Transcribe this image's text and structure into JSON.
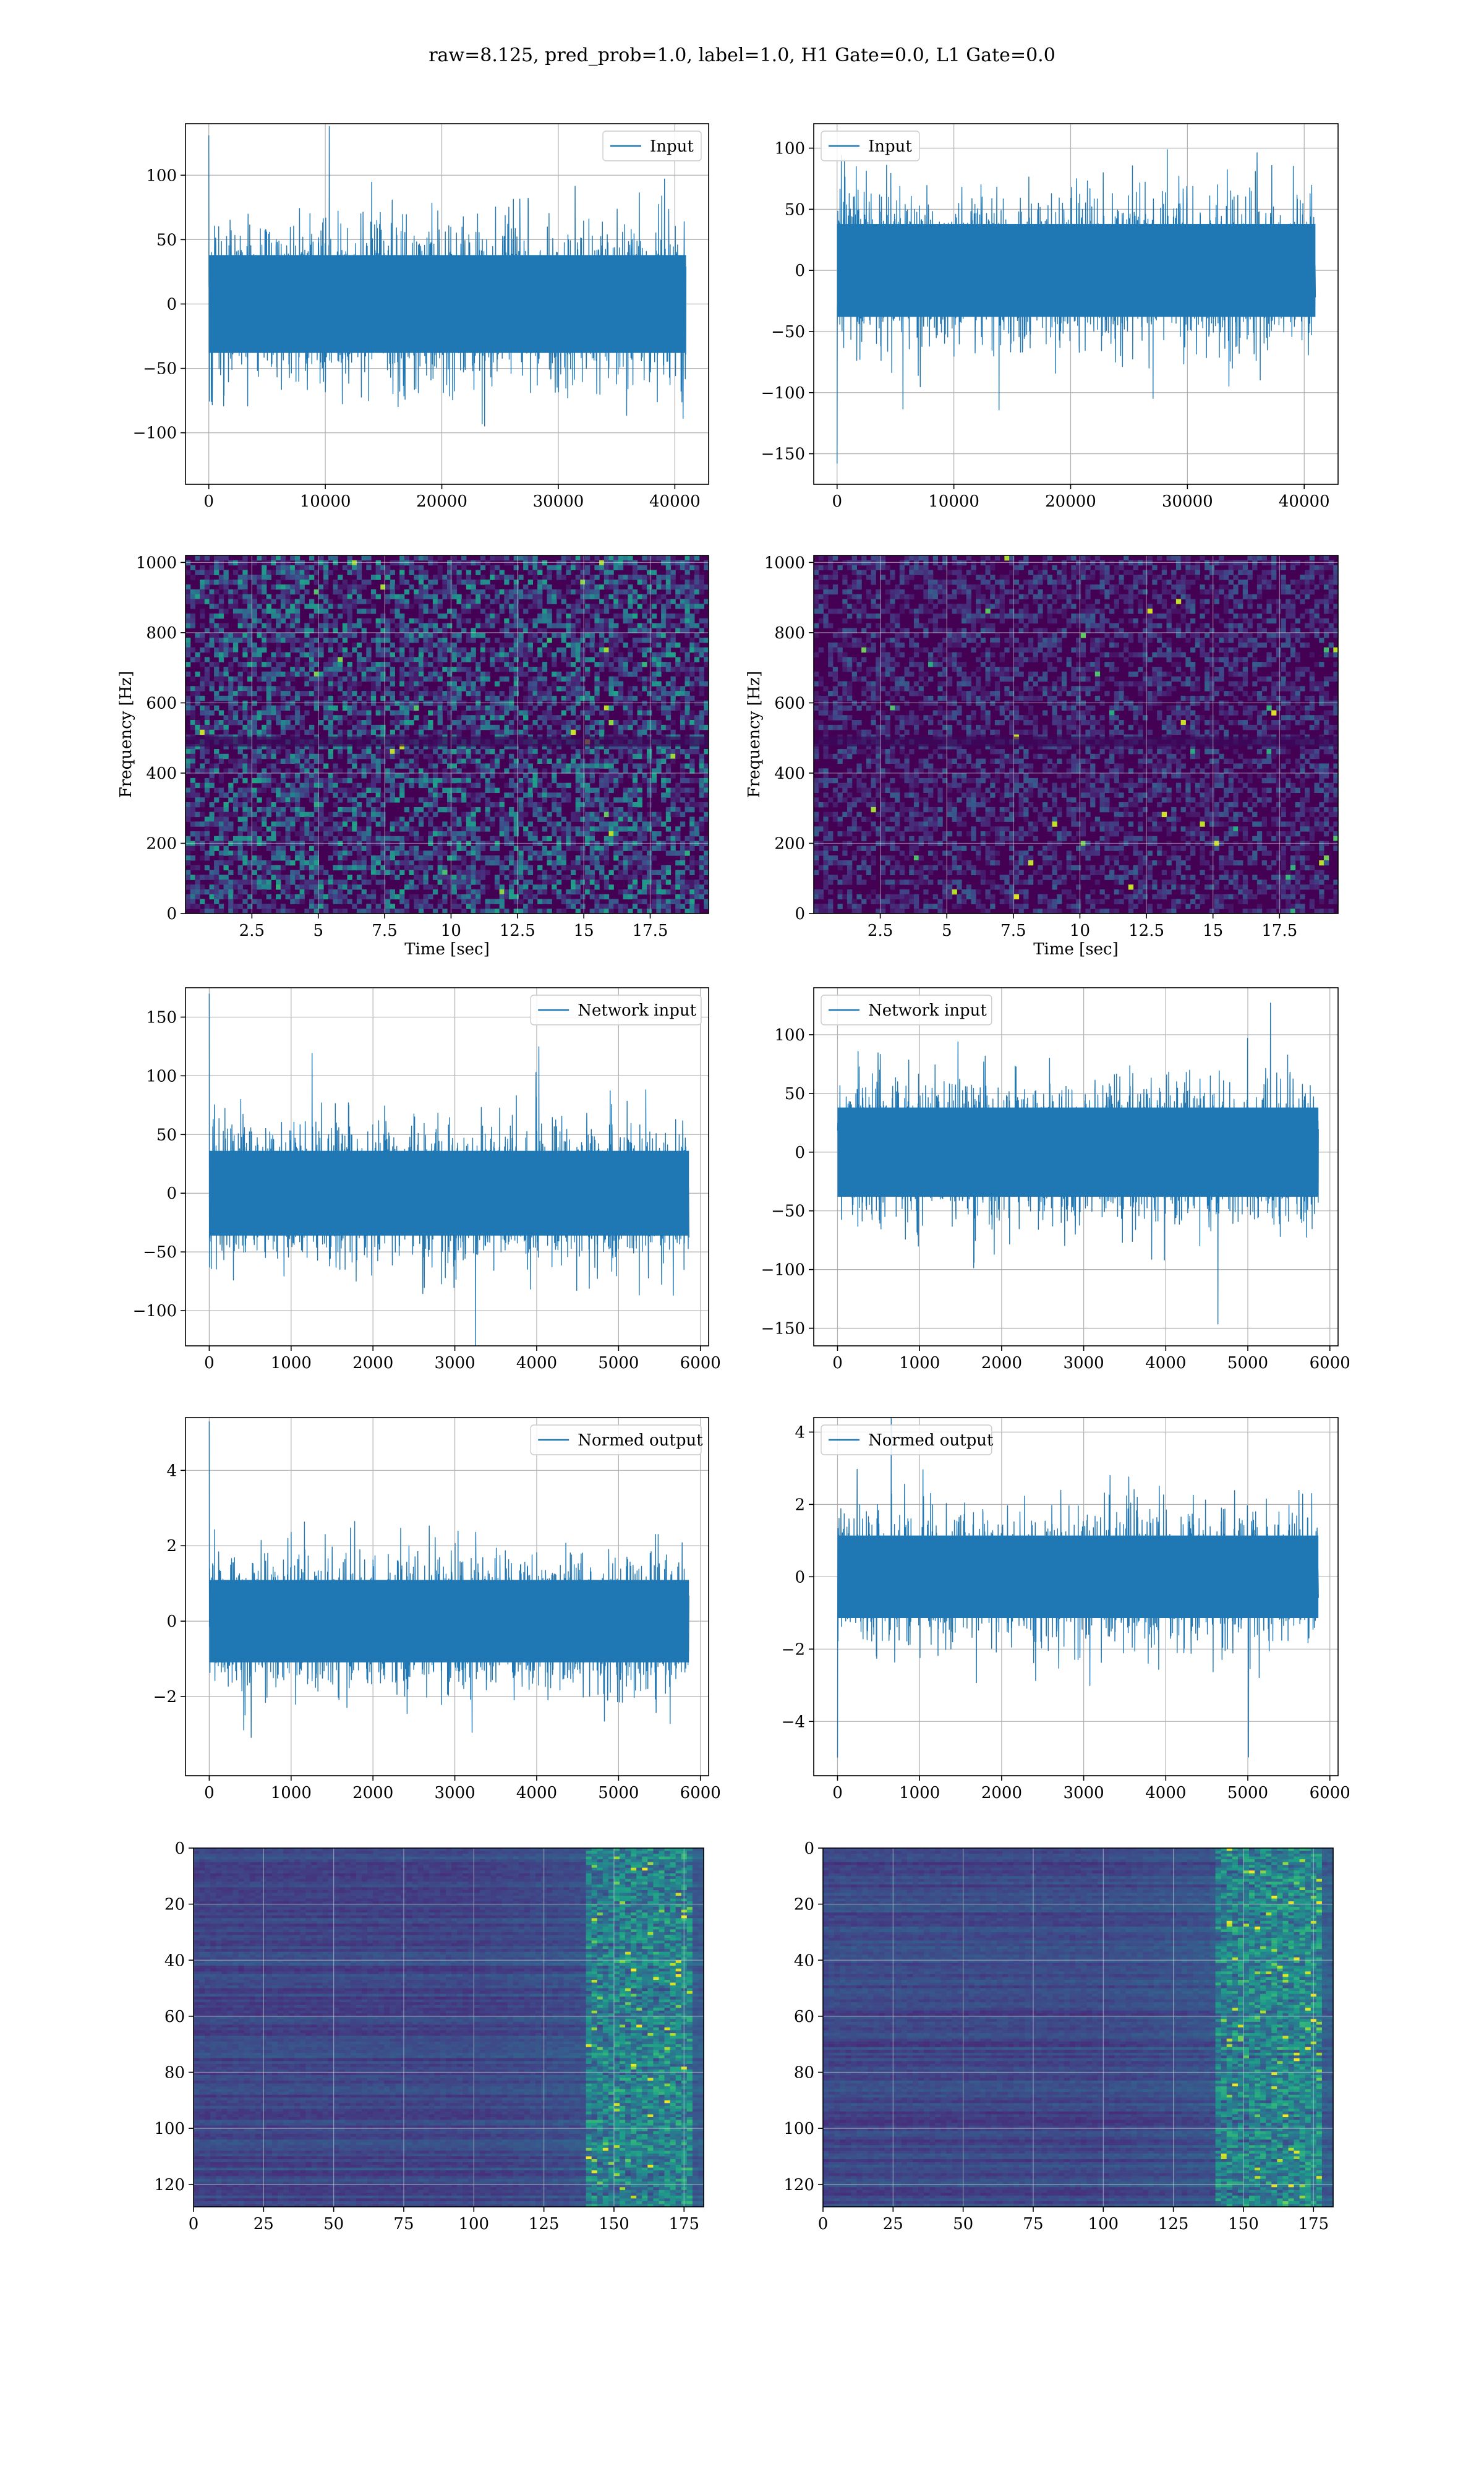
{
  "figure": {
    "title": "raw=8.125, pred_prob=1.0, label=1.0, H1 Gate=0.0, L1 Gate=0.0",
    "colors": {
      "series": "#1f77b4",
      "grid": "#b0b0b0",
      "axis": "#000000"
    }
  },
  "chart_data": [
    {
      "id": "h1-input",
      "type": "line",
      "legend": "Input",
      "legend_loc": "upper right",
      "grid": true,
      "xlim": [
        -2000,
        42900
      ],
      "ylim": [
        -140,
        140
      ],
      "xticks": [
        0,
        10000,
        20000,
        30000,
        40000
      ],
      "yticks": [
        -100,
        -50,
        0,
        50,
        100
      ],
      "x_range": [
        0,
        40960
      ],
      "amplitude": 40,
      "peak": 131
    },
    {
      "id": "l1-input",
      "type": "line",
      "legend": "Input",
      "legend_loc": "upper left",
      "grid": true,
      "xlim": [
        -2000,
        42900
      ],
      "ylim": [
        -175,
        120
      ],
      "xticks": [
        0,
        10000,
        20000,
        30000,
        40000
      ],
      "yticks": [
        -150,
        -100,
        -50,
        0,
        50,
        100
      ],
      "x_range": [
        0,
        40960
      ],
      "amplitude": 40,
      "peak": -158
    },
    {
      "id": "h1-spectrogram",
      "type": "heatmap",
      "grid": true,
      "xlim": [
        0,
        19.7
      ],
      "ylim": [
        0,
        1020
      ],
      "xticks": [
        2.5,
        5.0,
        7.5,
        10.0,
        12.5,
        15.0,
        17.5
      ],
      "yticks": [
        0,
        200,
        400,
        600,
        800,
        1000
      ],
      "xlabel": "Time [sec]",
      "ylabel": "Frequency [Hz]",
      "colormap": "viridis",
      "intensity": 0.38
    },
    {
      "id": "l1-spectrogram",
      "type": "heatmap",
      "grid": true,
      "xlim": [
        0,
        19.7
      ],
      "ylim": [
        0,
        1020
      ],
      "xticks": [
        2.5,
        5.0,
        7.5,
        10.0,
        12.5,
        15.0,
        17.5
      ],
      "yticks": [
        0,
        200,
        400,
        600,
        800,
        1000
      ],
      "xlabel": "Time [sec]",
      "ylabel": "Frequency [Hz]",
      "colormap": "viridis",
      "intensity": 0.2
    },
    {
      "id": "h1-network-input",
      "type": "line",
      "legend": "Network input",
      "legend_loc": "upper right",
      "grid": true,
      "xlim": [
        -290,
        6100
      ],
      "ylim": [
        -130,
        175
      ],
      "xticks": [
        0,
        1000,
        2000,
        3000,
        4000,
        5000,
        6000
      ],
      "yticks": [
        -100,
        -50,
        0,
        50,
        100,
        150
      ],
      "x_range": [
        0,
        5860
      ],
      "amplitude": 38,
      "peak": 170
    },
    {
      "id": "l1-network-input",
      "type": "line",
      "legend": "Network input",
      "legend_loc": "upper left",
      "grid": true,
      "xlim": [
        -290,
        6100
      ],
      "ylim": [
        -165,
        140
      ],
      "xticks": [
        0,
        1000,
        2000,
        3000,
        4000,
        5000,
        6000
      ],
      "yticks": [
        -150,
        -100,
        -50,
        0,
        50,
        100
      ],
      "x_range": [
        0,
        5860
      ],
      "amplitude": 40,
      "peak": 127
    },
    {
      "id": "h1-normed-output",
      "type": "line",
      "legend": "Normed output",
      "legend_loc": "upper right",
      "grid": true,
      "xlim": [
        -290,
        6100
      ],
      "ylim": [
        -4.1,
        5.4
      ],
      "xticks": [
        0,
        1000,
        2000,
        3000,
        4000,
        5000,
        6000
      ],
      "yticks": [
        -2,
        0,
        2,
        4
      ],
      "x_range": [
        0,
        5860
      ],
      "amplitude": 1.15,
      "peak": 5.3
    },
    {
      "id": "l1-normed-output",
      "type": "line",
      "legend": "Normed output",
      "legend_loc": "upper left",
      "grid": true,
      "xlim": [
        -290,
        6100
      ],
      "ylim": [
        -5.5,
        4.4
      ],
      "xticks": [
        0,
        1000,
        2000,
        3000,
        4000,
        5000,
        6000
      ],
      "yticks": [
        -4,
        -2,
        0,
        2,
        4
      ],
      "x_range": [
        0,
        5860
      ],
      "amplitude": 1.2,
      "peak": -5.0
    },
    {
      "id": "h1-feature-map",
      "type": "heatmap",
      "grid": true,
      "xlim": [
        0,
        182
      ],
      "ylim": [
        128,
        0
      ],
      "xticks": [
        0,
        25,
        50,
        75,
        100,
        125,
        150,
        175
      ],
      "yticks": [
        0,
        20,
        40,
        60,
        80,
        100,
        120
      ],
      "colormap": "viridis",
      "active_columns": [
        140,
        178
      ]
    },
    {
      "id": "l1-feature-map",
      "type": "heatmap",
      "grid": true,
      "xlim": [
        0,
        182
      ],
      "ylim": [
        128,
        0
      ],
      "xticks": [
        0,
        25,
        50,
        75,
        100,
        125,
        150,
        175
      ],
      "yticks": [
        0,
        20,
        40,
        60,
        80,
        100,
        120
      ],
      "colormap": "viridis",
      "active_columns": [
        140,
        178
      ]
    }
  ]
}
